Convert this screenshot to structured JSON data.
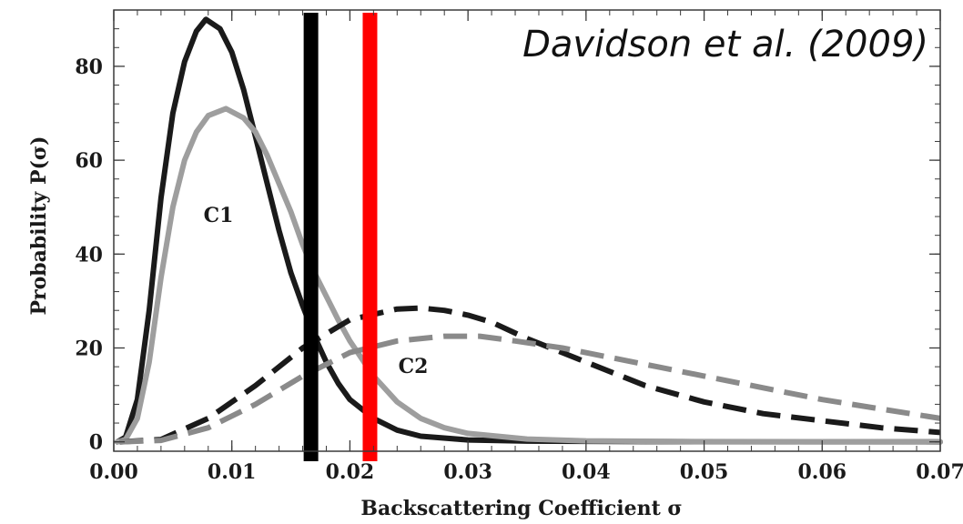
{
  "chart_data": {
    "type": "line",
    "title": "",
    "xlabel": "Backscattering Coefficient σ",
    "ylabel": "Probability P(σ)",
    "xlim": [
      0.0,
      0.07
    ],
    "ylim": [
      -2,
      92
    ],
    "x_ticks": [
      "0.00",
      "0.01",
      "0.02",
      "0.03",
      "0.04",
      "0.05",
      "0.06",
      "0.07"
    ],
    "y_ticks": [
      "0",
      "20",
      "40",
      "60",
      "80"
    ],
    "grid": false,
    "annotations": {
      "c1_label": "C1",
      "c2_label": "C2",
      "citation": "Davidson et al. (2009)"
    },
    "series": [
      {
        "color": "#1a1a1a",
        "style": "solid",
        "points": [
          [
            0.0003,
            0
          ],
          [
            0.001,
            1
          ],
          [
            0.002,
            9
          ],
          [
            0.003,
            28
          ],
          [
            0.004,
            52
          ],
          [
            0.005,
            70
          ],
          [
            0.006,
            81
          ],
          [
            0.007,
            87.5
          ],
          [
            0.0078,
            90
          ],
          [
            0.009,
            88
          ],
          [
            0.01,
            83
          ],
          [
            0.011,
            75
          ],
          [
            0.012,
            65
          ],
          [
            0.013,
            55
          ],
          [
            0.014,
            45
          ],
          [
            0.015,
            36
          ],
          [
            0.016,
            29
          ],
          [
            0.017,
            22.5
          ],
          [
            0.018,
            17
          ],
          [
            0.019,
            12.5
          ],
          [
            0.02,
            9
          ],
          [
            0.022,
            5
          ],
          [
            0.024,
            2.5
          ],
          [
            0.026,
            1.2
          ],
          [
            0.03,
            0.4
          ],
          [
            0.035,
            0.15
          ],
          [
            0.045,
            0.05
          ],
          [
            0.07,
            0
          ]
        ]
      },
      {
        "color": "#9e9e9e",
        "style": "solid",
        "points": [
          [
            0.0003,
            0
          ],
          [
            0.001,
            0.5
          ],
          [
            0.002,
            5
          ],
          [
            0.003,
            17
          ],
          [
            0.004,
            35
          ],
          [
            0.005,
            50
          ],
          [
            0.006,
            60
          ],
          [
            0.007,
            66
          ],
          [
            0.008,
            69.5
          ],
          [
            0.0095,
            71
          ],
          [
            0.011,
            69
          ],
          [
            0.012,
            66
          ],
          [
            0.013,
            61
          ],
          [
            0.014,
            55
          ],
          [
            0.015,
            49
          ],
          [
            0.016,
            42
          ],
          [
            0.017,
            36
          ],
          [
            0.018,
            31
          ],
          [
            0.019,
            26
          ],
          [
            0.02,
            21.5
          ],
          [
            0.022,
            14
          ],
          [
            0.024,
            8.5
          ],
          [
            0.026,
            5
          ],
          [
            0.028,
            3
          ],
          [
            0.03,
            1.8
          ],
          [
            0.035,
            0.6
          ],
          [
            0.04,
            0.2
          ],
          [
            0.05,
            0.05
          ],
          [
            0.07,
            0
          ]
        ]
      },
      {
        "color": "#1a1a1a",
        "style": "dashed",
        "points": [
          [
            0.0005,
            0
          ],
          [
            0.004,
            0.5
          ],
          [
            0.008,
            5
          ],
          [
            0.012,
            12
          ],
          [
            0.016,
            20
          ],
          [
            0.02,
            26
          ],
          [
            0.024,
            28.3
          ],
          [
            0.026,
            28.5
          ],
          [
            0.028,
            28
          ],
          [
            0.03,
            27
          ],
          [
            0.032,
            25.5
          ],
          [
            0.035,
            22
          ],
          [
            0.04,
            17
          ],
          [
            0.045,
            12
          ],
          [
            0.05,
            8.5
          ],
          [
            0.055,
            6
          ],
          [
            0.06,
            4.5
          ],
          [
            0.065,
            3
          ],
          [
            0.07,
            2
          ]
        ]
      },
      {
        "color": "#8a8a8a",
        "style": "dashed",
        "points": [
          [
            0.0005,
            0
          ],
          [
            0.004,
            0.3
          ],
          [
            0.008,
            3
          ],
          [
            0.012,
            8
          ],
          [
            0.016,
            14
          ],
          [
            0.02,
            19
          ],
          [
            0.024,
            21.5
          ],
          [
            0.028,
            22.5
          ],
          [
            0.031,
            22.5
          ],
          [
            0.034,
            21.5
          ],
          [
            0.038,
            20
          ],
          [
            0.042,
            18
          ],
          [
            0.046,
            16
          ],
          [
            0.05,
            14
          ],
          [
            0.055,
            11.5
          ],
          [
            0.06,
            9
          ],
          [
            0.065,
            7
          ],
          [
            0.07,
            5
          ]
        ]
      }
    ],
    "vertical_lines": [
      {
        "x": 0.0167,
        "color": "#000000"
      },
      {
        "x": 0.0217,
        "color": "#ff0000"
      }
    ]
  }
}
